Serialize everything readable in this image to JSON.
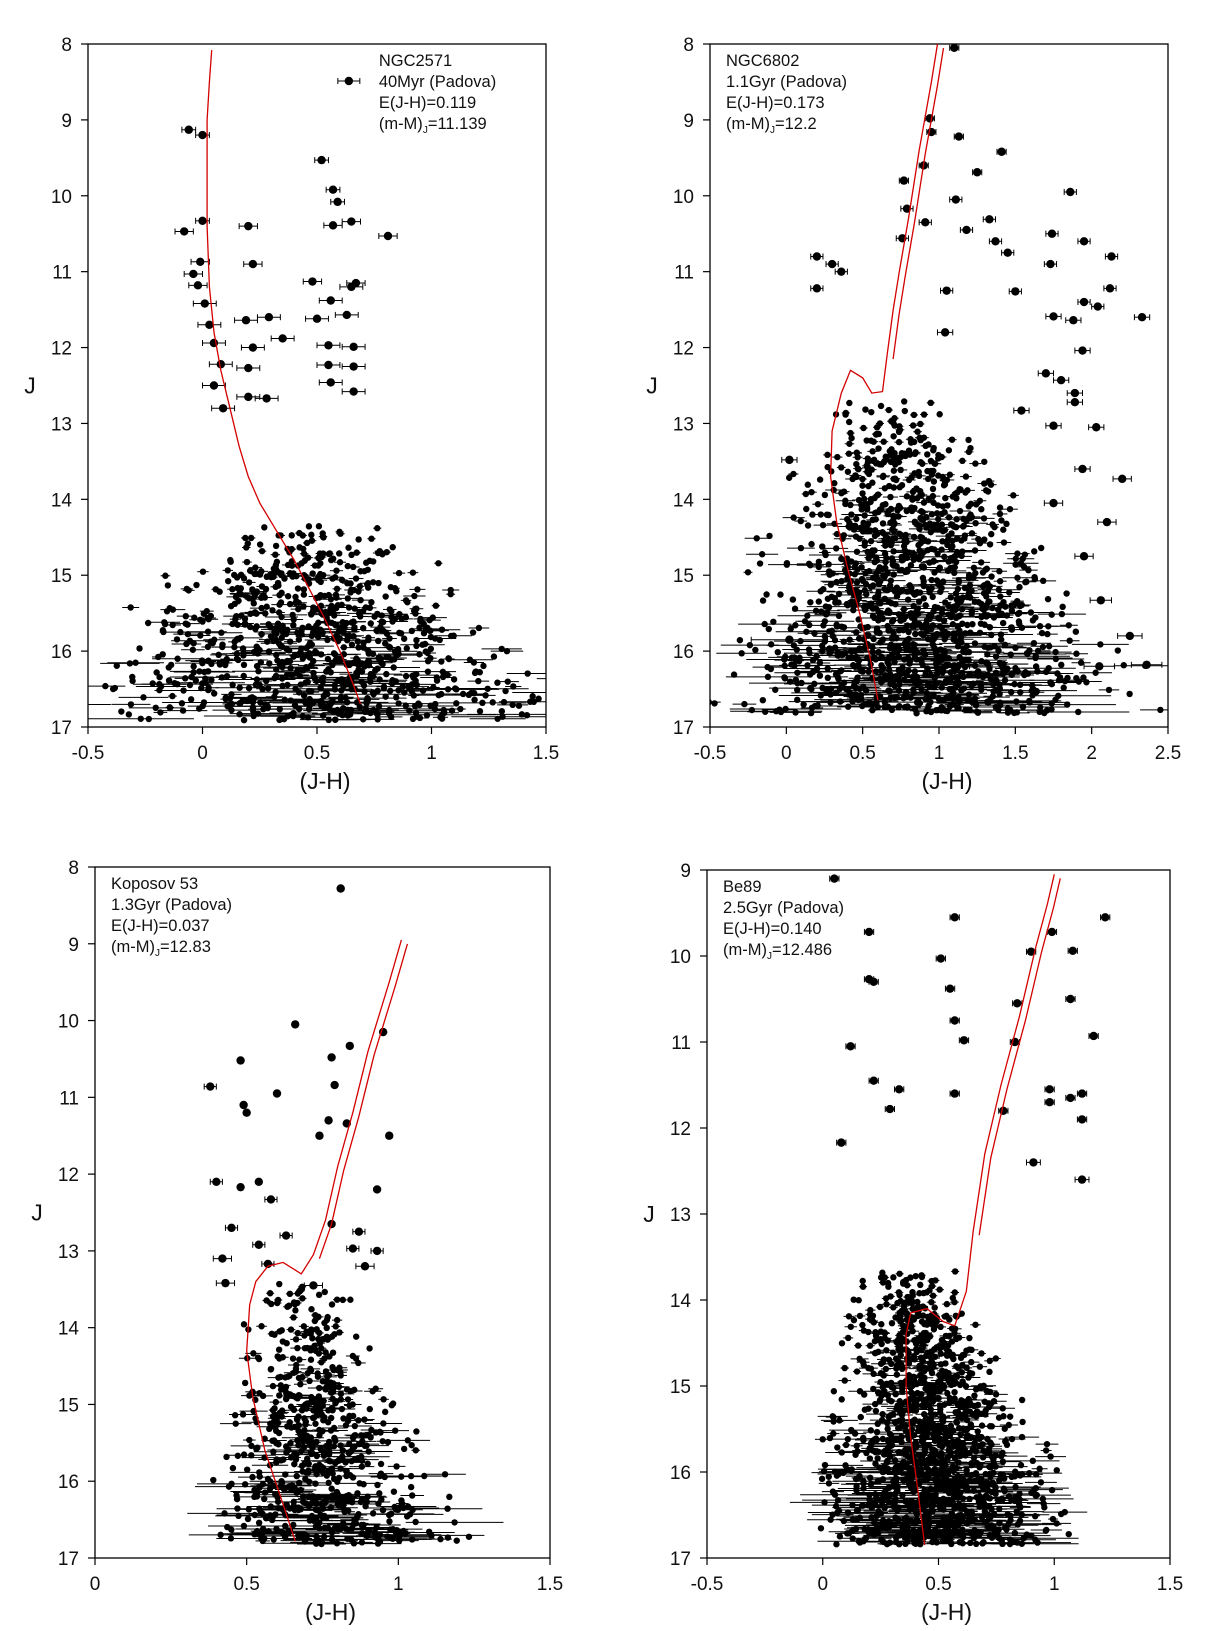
{
  "chart_data": [
    {
      "type": "scatter",
      "panel": "top-left",
      "annotation": {
        "lines": [
          "NGC2571",
          "40Myr (Padova)",
          "E(J-H)=0.119"
        ],
        "modulus": {
          "prefix": "(m-M)",
          "sub": "J",
          "suffix": "=11.139"
        }
      },
      "xlabel": "(J-H)",
      "ylabel": "J",
      "xlim": [
        -0.5,
        1.5
      ],
      "ylim": [
        17,
        8
      ],
      "xticks": [
        -0.5,
        0,
        0.5,
        1,
        1.5
      ],
      "xtick_labels": [
        "-0.5",
        "0",
        "0.5",
        "1",
        "1.5"
      ],
      "yticks": [
        8,
        9,
        10,
        11,
        12,
        13,
        14,
        15,
        16,
        17
      ],
      "ytick_labels": [
        "8",
        "9",
        "10",
        "11",
        "12",
        "13",
        "14",
        "15",
        "16",
        "17"
      ],
      "legend_marker": true,
      "isochrone_color": "#d40000",
      "points": [
        [
          -0.06,
          9.13,
          0.03
        ],
        [
          0.0,
          9.2,
          0.03
        ],
        [
          0.52,
          9.53,
          0.03
        ],
        [
          0.57,
          9.92,
          0.03
        ],
        [
          0.59,
          10.08,
          0.03
        ],
        [
          0.0,
          10.33,
          0.03
        ],
        [
          0.65,
          10.34,
          0.04
        ],
        [
          0.57,
          10.39,
          0.04
        ],
        [
          0.2,
          10.4,
          0.04
        ],
        [
          -0.08,
          10.47,
          0.04
        ],
        [
          0.81,
          10.53,
          0.04
        ],
        [
          0.22,
          10.9,
          0.04
        ],
        [
          -0.01,
          10.87,
          0.04
        ],
        [
          -0.04,
          11.03,
          0.04
        ],
        [
          0.67,
          11.15,
          0.04
        ],
        [
          0.48,
          11.13,
          0.04
        ],
        [
          -0.02,
          11.18,
          0.04
        ],
        [
          0.65,
          11.2,
          0.05
        ],
        [
          0.56,
          11.38,
          0.05
        ],
        [
          0.01,
          11.42,
          0.05
        ],
        [
          0.63,
          11.57,
          0.05
        ],
        [
          0.5,
          11.62,
          0.05
        ],
        [
          0.29,
          11.6,
          0.05
        ],
        [
          0.19,
          11.64,
          0.05
        ],
        [
          0.03,
          11.7,
          0.05
        ],
        [
          0.35,
          11.88,
          0.05
        ],
        [
          0.05,
          11.94,
          0.05
        ],
        [
          0.55,
          11.97,
          0.05
        ],
        [
          0.66,
          11.99,
          0.05
        ],
        [
          0.22,
          12.0,
          0.05
        ],
        [
          0.08,
          12.22,
          0.05
        ],
        [
          0.55,
          12.23,
          0.05
        ],
        [
          0.66,
          12.25,
          0.05
        ],
        [
          0.2,
          12.27,
          0.05
        ],
        [
          0.56,
          12.46,
          0.05
        ],
        [
          0.05,
          12.5,
          0.05
        ],
        [
          0.66,
          12.58,
          0.05
        ],
        [
          0.2,
          12.65,
          0.05
        ],
        [
          0.28,
          12.67,
          0.05
        ],
        [
          0.09,
          12.8,
          0.05
        ]
      ],
      "isochrone": [
        [
          0.04,
          8.08
        ],
        [
          0.03,
          8.5
        ],
        [
          0.02,
          9.0
        ],
        [
          0.02,
          9.6
        ],
        [
          0.02,
          10.4
        ],
        [
          0.03,
          11.2
        ],
        [
          0.05,
          11.8
        ],
        [
          0.08,
          12.3
        ],
        [
          0.12,
          12.8
        ],
        [
          0.16,
          13.3
        ],
        [
          0.2,
          13.7
        ],
        [
          0.25,
          14.05
        ],
        [
          0.32,
          14.4
        ],
        [
          0.4,
          14.8
        ],
        [
          0.47,
          15.2
        ],
        [
          0.53,
          15.55
        ],
        [
          0.6,
          16.0
        ],
        [
          0.66,
          16.45
        ],
        [
          0.69,
          16.7
        ]
      ]
    },
    {
      "type": "scatter",
      "panel": "top-right",
      "annotation": {
        "lines": [
          "NGC6802",
          "1.1Gyr (Padova)",
          "E(J-H)=0.173"
        ],
        "modulus": {
          "prefix": "(m-M)",
          "sub": "J",
          "suffix": "=12.2"
        }
      },
      "xlabel": "(J-H)",
      "ylabel": "J",
      "xlim": [
        -0.5,
        2.5
      ],
      "ylim": [
        17,
        8
      ],
      "xticks": [
        -0.5,
        0,
        0.5,
        1,
        1.5,
        2,
        2.5
      ],
      "xtick_labels": [
        "-0.5",
        "0",
        "0.5",
        "1",
        "1.5",
        "2",
        "2.5"
      ],
      "yticks": [
        8,
        9,
        10,
        11,
        12,
        13,
        14,
        15,
        16,
        17
      ],
      "ytick_labels": [
        "8",
        "9",
        "10",
        "11",
        "12",
        "13",
        "14",
        "15",
        "16",
        "17"
      ],
      "legend_marker": false,
      "isochrone_color": "#d40000",
      "points": [
        [
          1.1,
          8.05,
          0.03
        ],
        [
          0.94,
          8.98,
          0.03
        ],
        [
          0.95,
          9.16,
          0.03
        ],
        [
          1.13,
          9.22,
          0.03
        ],
        [
          1.41,
          9.42,
          0.03
        ],
        [
          0.9,
          9.6,
          0.03
        ],
        [
          1.25,
          9.69,
          0.03
        ],
        [
          0.77,
          9.8,
          0.03
        ],
        [
          1.86,
          9.95,
          0.04
        ],
        [
          1.11,
          10.05,
          0.04
        ],
        [
          0.79,
          10.17,
          0.04
        ],
        [
          1.33,
          10.31,
          0.04
        ],
        [
          0.91,
          10.35,
          0.04
        ],
        [
          1.18,
          10.45,
          0.04
        ],
        [
          1.74,
          10.5,
          0.04
        ],
        [
          0.76,
          10.56,
          0.04
        ],
        [
          1.37,
          10.6,
          0.04
        ],
        [
          1.95,
          10.6,
          0.04
        ],
        [
          1.45,
          10.75,
          0.04
        ],
        [
          0.2,
          10.8,
          0.04
        ],
        [
          2.13,
          10.8,
          0.04
        ],
        [
          0.3,
          10.9,
          0.04
        ],
        [
          1.73,
          10.9,
          0.04
        ],
        [
          0.36,
          11.0,
          0.04
        ],
        [
          0.2,
          11.22,
          0.04
        ],
        [
          2.12,
          11.22,
          0.04
        ],
        [
          1.05,
          11.25,
          0.04
        ],
        [
          1.5,
          11.26,
          0.04
        ],
        [
          1.95,
          11.4,
          0.04
        ],
        [
          2.04,
          11.46,
          0.04
        ],
        [
          1.75,
          11.59,
          0.05
        ],
        [
          2.33,
          11.6,
          0.05
        ],
        [
          1.88,
          11.64,
          0.05
        ],
        [
          1.04,
          11.8,
          0.05
        ],
        [
          1.94,
          12.04,
          0.05
        ],
        [
          1.7,
          12.34,
          0.05
        ],
        [
          1.8,
          12.43,
          0.05
        ],
        [
          1.89,
          12.6,
          0.05
        ],
        [
          1.89,
          12.72,
          0.05
        ],
        [
          1.54,
          12.83,
          0.05
        ],
        [
          1.75,
          13.03,
          0.05
        ],
        [
          2.03,
          13.05,
          0.05
        ],
        [
          0.02,
          13.48,
          0.05
        ],
        [
          1.94,
          13.6,
          0.05
        ],
        [
          2.2,
          13.73,
          0.06
        ],
        [
          1.75,
          14.05,
          0.06
        ],
        [
          2.1,
          14.3,
          0.06
        ],
        [
          1.95,
          14.75,
          0.06
        ],
        [
          2.06,
          15.33,
          0.07
        ],
        [
          2.25,
          15.8,
          0.08
        ],
        [
          2.36,
          16.18,
          0.1
        ],
        [
          2.05,
          16.2,
          0.1
        ],
        [
          1.1,
          16.2,
          0.1
        ],
        [
          0.02,
          15.85,
          0.25
        ]
      ],
      "isochrone": [
        [
          0.6,
          16.65
        ],
        [
          0.55,
          16.1
        ],
        [
          0.48,
          15.5
        ],
        [
          0.4,
          14.9
        ],
        [
          0.33,
          14.3
        ],
        [
          0.29,
          13.7
        ],
        [
          0.3,
          13.1
        ],
        [
          0.36,
          12.6
        ],
        [
          0.42,
          12.3
        ],
        [
          0.5,
          12.4
        ],
        [
          0.56,
          12.6
        ],
        [
          0.63,
          12.58
        ],
        [
          0.66,
          12.1
        ],
        [
          0.7,
          11.5
        ],
        [
          0.74,
          11.0
        ],
        [
          0.8,
          10.3
        ],
        [
          0.87,
          9.4
        ],
        [
          0.95,
          8.5
        ],
        [
          0.99,
          8.0
        ]
      ]
    },
    {
      "type": "scatter",
      "panel": "bottom-left",
      "annotation": {
        "lines": [
          "Koposov 53",
          "1.3Gyr (Padova)",
          "E(J-H)=0.037"
        ],
        "modulus": {
          "prefix": "(m-M)",
          "sub": "J",
          "suffix": "=12.83"
        }
      },
      "xlabel": "(J-H)",
      "ylabel": "J",
      "xlim": [
        0,
        1.5
      ],
      "ylim": [
        17,
        8
      ],
      "xticks": [
        0,
        0.5,
        1,
        1.5
      ],
      "xtick_labels": [
        "0",
        "0.5",
        "1",
        "1.5"
      ],
      "yticks": [
        8,
        9,
        10,
        11,
        12,
        13,
        14,
        15,
        16,
        17
      ],
      "ytick_labels": [
        "8",
        "9",
        "10",
        "11",
        "12",
        "13",
        "14",
        "15",
        "16",
        "17"
      ],
      "legend_marker": false,
      "isochrone_color": "#d40000",
      "points": [
        [
          0.81,
          8.28,
          0.0
        ],
        [
          0.66,
          10.05,
          0.0
        ],
        [
          0.95,
          10.15,
          0.0
        ],
        [
          0.78,
          10.48,
          0.0
        ],
        [
          0.84,
          10.33,
          0.0
        ],
        [
          0.48,
          10.52,
          0.0
        ],
        [
          0.79,
          10.84,
          0.0
        ],
        [
          0.38,
          10.86,
          0.02
        ],
        [
          0.6,
          10.95,
          0.0
        ],
        [
          0.49,
          11.1,
          0.0
        ],
        [
          0.5,
          11.2,
          0.0
        ],
        [
          0.77,
          11.3,
          0.0
        ],
        [
          0.83,
          11.34,
          0.0
        ],
        [
          0.74,
          11.5,
          0.0
        ],
        [
          0.97,
          11.5,
          0.0
        ],
        [
          0.4,
          12.1,
          0.02
        ],
        [
          0.54,
          12.1,
          0.0
        ],
        [
          0.48,
          12.17,
          0.0
        ],
        [
          0.58,
          12.33,
          0.02
        ],
        [
          0.78,
          12.65,
          0.0
        ],
        [
          0.93,
          12.2,
          0.0
        ],
        [
          0.45,
          12.7,
          0.02
        ],
        [
          0.87,
          12.75,
          0.02
        ],
        [
          0.63,
          12.8,
          0.02
        ],
        [
          0.54,
          12.92,
          0.02
        ],
        [
          0.85,
          12.97,
          0.02
        ],
        [
          0.93,
          13.0,
          0.02
        ],
        [
          0.42,
          13.1,
          0.03
        ],
        [
          0.57,
          13.17,
          0.02
        ],
        [
          0.89,
          13.2,
          0.03
        ],
        [
          0.72,
          13.45,
          0.03
        ],
        [
          0.43,
          13.42,
          0.03
        ]
      ],
      "isochrone": [
        [
          0.66,
          16.78
        ],
        [
          0.62,
          16.3
        ],
        [
          0.56,
          15.6
        ],
        [
          0.52,
          14.9
        ],
        [
          0.5,
          14.3
        ],
        [
          0.51,
          13.7
        ],
        [
          0.53,
          13.4
        ],
        [
          0.57,
          13.2
        ],
        [
          0.62,
          13.15
        ],
        [
          0.68,
          13.3
        ],
        [
          0.72,
          13.05
        ],
        [
          0.76,
          12.6
        ],
        [
          0.8,
          11.9
        ],
        [
          0.85,
          11.2
        ],
        [
          0.9,
          10.4
        ],
        [
          0.97,
          9.5
        ],
        [
          1.01,
          8.95
        ]
      ]
    },
    {
      "type": "scatter",
      "panel": "bottom-right",
      "annotation": {
        "lines": [
          "Be89",
          "2.5Gyr (Padova)",
          "E(J-H)=0.140"
        ],
        "modulus": {
          "prefix": "(m-M)",
          "sub": "J",
          "suffix": "=12.486"
        }
      },
      "xlabel": "(J-H)",
      "ylabel": "J",
      "xlim": [
        -0.5,
        1.5
      ],
      "ylim": [
        17,
        9
      ],
      "xticks": [
        -0.5,
        0,
        0.5,
        1,
        1.5
      ],
      "xtick_labels": [
        "-0.5",
        "0",
        "0.5",
        "1",
        "1.5"
      ],
      "yticks": [
        9,
        10,
        11,
        12,
        13,
        14,
        15,
        16,
        17
      ],
      "ytick_labels": [
        "9",
        "10",
        "11",
        "12",
        "13",
        "14",
        "15",
        "16",
        "17"
      ],
      "legend_marker": false,
      "isochrone_color": "#d40000",
      "points": [
        [
          0.05,
          9.1,
          0.02
        ],
        [
          0.57,
          9.55,
          0.02
        ],
        [
          1.22,
          9.55,
          0.02
        ],
        [
          0.2,
          9.72,
          0.02
        ],
        [
          0.99,
          9.72,
          0.02
        ],
        [
          0.9,
          9.95,
          0.02
        ],
        [
          1.08,
          9.94,
          0.02
        ],
        [
          0.51,
          10.03,
          0.02
        ],
        [
          0.2,
          10.27,
          0.02
        ],
        [
          0.22,
          10.3,
          0.02
        ],
        [
          0.55,
          10.38,
          0.02
        ],
        [
          1.07,
          10.5,
          0.02
        ],
        [
          0.84,
          10.55,
          0.02
        ],
        [
          0.57,
          10.75,
          0.02
        ],
        [
          1.17,
          10.93,
          0.02
        ],
        [
          0.12,
          11.05,
          0.02
        ],
        [
          0.61,
          10.98,
          0.02
        ],
        [
          0.83,
          11.0,
          0.02
        ],
        [
          0.22,
          11.45,
          0.02
        ],
        [
          0.33,
          11.55,
          0.02
        ],
        [
          0.98,
          11.55,
          0.02
        ],
        [
          0.57,
          11.6,
          0.02
        ],
        [
          1.12,
          11.6,
          0.02
        ],
        [
          0.98,
          11.7,
          0.02
        ],
        [
          1.07,
          11.65,
          0.02
        ],
        [
          0.29,
          11.78,
          0.02
        ],
        [
          0.78,
          11.8,
          0.02
        ],
        [
          1.12,
          11.9,
          0.02
        ],
        [
          0.08,
          12.17,
          0.02
        ],
        [
          0.91,
          12.4,
          0.03
        ],
        [
          1.12,
          12.6,
          0.03
        ]
      ],
      "isochrone": [
        [
          0.44,
          16.85
        ],
        [
          0.41,
          16.2
        ],
        [
          0.38,
          15.6
        ],
        [
          0.36,
          15.0
        ],
        [
          0.36,
          14.4
        ],
        [
          0.38,
          14.15
        ],
        [
          0.45,
          14.1
        ],
        [
          0.52,
          14.25
        ],
        [
          0.57,
          14.3
        ],
        [
          0.62,
          13.9
        ],
        [
          0.65,
          13.2
        ],
        [
          0.7,
          12.3
        ],
        [
          0.77,
          11.5
        ],
        [
          0.85,
          10.7
        ],
        [
          0.92,
          9.9
        ],
        [
          0.97,
          9.4
        ],
        [
          1.0,
          9.05
        ]
      ]
    }
  ]
}
